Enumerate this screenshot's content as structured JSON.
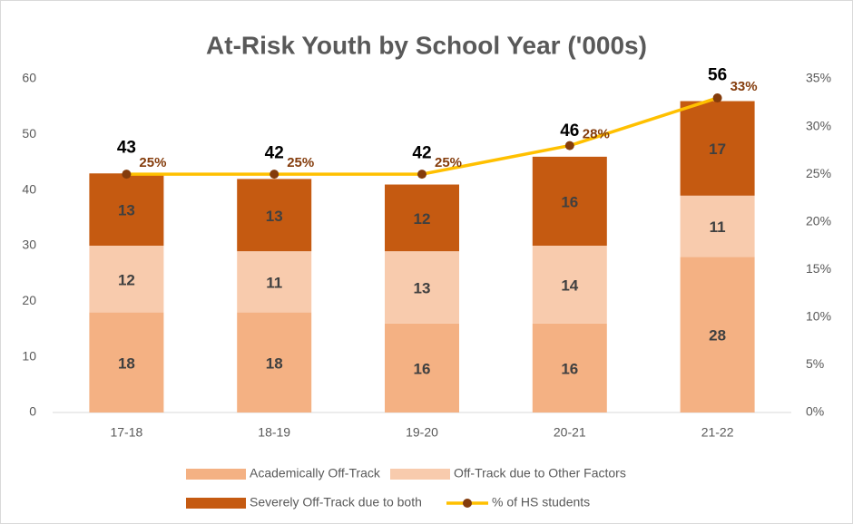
{
  "chart_data": {
    "type": "bar",
    "stacked": true,
    "title": "At-Risk Youth by School Year ('000s)",
    "categories": [
      "17-18",
      "18-19",
      "19-20",
      "20-21",
      "21-22"
    ],
    "series": [
      {
        "name": "Academically Off-Track",
        "color": "#f4b183",
        "values": [
          18,
          18,
          16,
          16,
          28
        ]
      },
      {
        "name": "Off-Track due to Other Factors",
        "color": "#f8cbad",
        "values": [
          12,
          11,
          13,
          14,
          11
        ]
      },
      {
        "name": "Severely Off-Track due to both",
        "color": "#c55a11",
        "values": [
          13,
          13,
          12,
          16,
          17
        ]
      },
      {
        "name": "% of HS students",
        "type": "line",
        "axis": "y2",
        "color": "#ffc000",
        "marker_color": "#843c0c",
        "values": [
          25,
          25,
          25,
          28,
          33
        ],
        "value_labels": [
          "25%",
          "25%",
          "25%",
          "28%",
          "33%"
        ]
      }
    ],
    "totals": [
      43,
      42,
      42,
      46,
      56
    ],
    "ylim": [
      0,
      60
    ],
    "yticks": [
      0,
      10,
      20,
      30,
      40,
      50,
      60
    ],
    "y2lim": [
      0,
      35
    ],
    "y2ticks": [
      {
        "value": 0,
        "label": "0%"
      },
      {
        "value": 5,
        "label": "5%"
      },
      {
        "value": 10,
        "label": "10%"
      },
      {
        "value": 15,
        "label": "15%"
      },
      {
        "value": 20,
        "label": "20%"
      },
      {
        "value": 25,
        "label": "25%"
      },
      {
        "value": 30,
        "label": "30%"
      },
      {
        "value": 35,
        "label": "35%"
      }
    ],
    "grid": false,
    "legend": "bottom"
  }
}
